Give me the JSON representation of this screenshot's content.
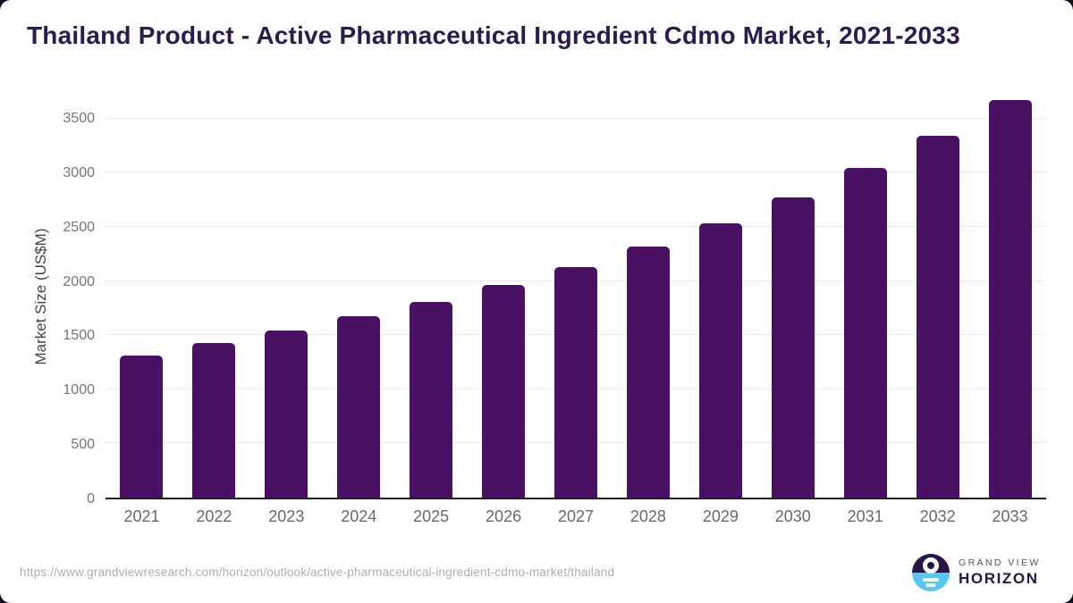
{
  "page": {
    "outer_background": "#120b1e",
    "card_background": "#ffffff"
  },
  "title": {
    "text": "Thailand Product - Active Pharmaceutical Ingredient Cdmo Market, 2021-2033",
    "color": "#2e1b4e"
  },
  "chart_data": {
    "type": "bar",
    "title": "Thailand Product - Active Pharmaceutical Ingredient Cdmo Market, 2021-2033",
    "categories": [
      "2021",
      "2022",
      "2023",
      "2024",
      "2025",
      "2026",
      "2027",
      "2028",
      "2029",
      "2030",
      "2031",
      "2032",
      "2033"
    ],
    "values": [
      1315,
      1424,
      1543,
      1675,
      1806,
      1968,
      2133,
      2318,
      2532,
      2770,
      3045,
      3345,
      3675
    ],
    "xlabel": "",
    "ylabel": "Market Size (US$M)",
    "yticks": [
      0,
      500,
      1000,
      1500,
      2000,
      2500,
      3000,
      3500
    ],
    "ylim": [
      0,
      3730
    ],
    "grid": "horizontal",
    "legend": "none",
    "bar_color": "#4a1063",
    "tick_color": "#757575",
    "gridline_color": "#e9e9e9",
    "axis_line_color": "#1f1f1f"
  },
  "footer": {
    "source_url": "https://www.grandviewresearch.com/horizon/outlook/active-pharmaceutical-ingredient-cdmo-market/thailand",
    "logo": {
      "top_text": "GRAND VIEW",
      "bottom_text": "HORIZON",
      "navy": "#261545",
      "blue": "#56c6f2"
    }
  }
}
